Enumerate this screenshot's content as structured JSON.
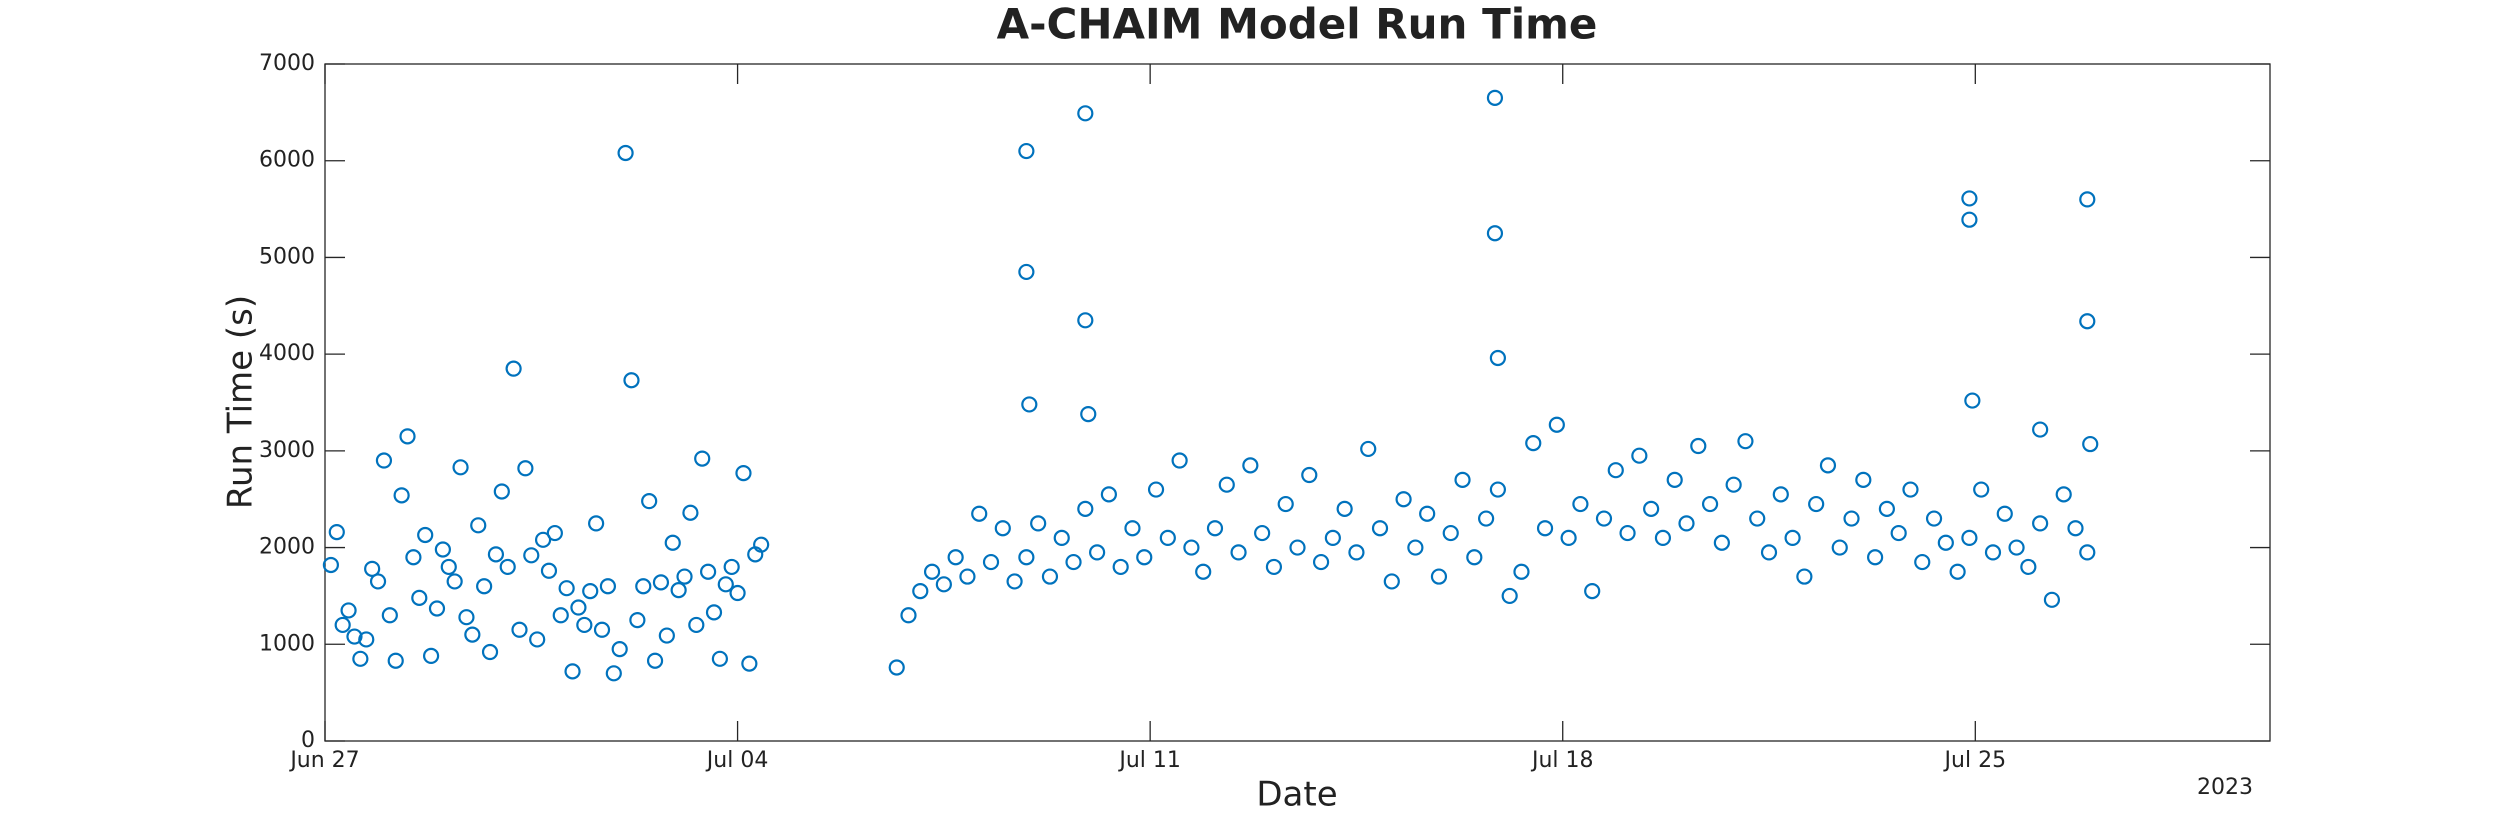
{
  "chart_data": {
    "type": "scatter",
    "title": "A-CHAIM Model Run Time",
    "x_label": "Date",
    "y_label": "Run Time (s)",
    "x_year_label": "2023",
    "color": "#0072bd",
    "marker": "open-circle",
    "xlim": [
      0,
      33
    ],
    "xticks": [
      {
        "value": 0,
        "label": "Jun 27"
      },
      {
        "value": 7,
        "label": "Jul 04"
      },
      {
        "value": 14,
        "label": "Jul 11"
      },
      {
        "value": 21,
        "label": "Jul 18"
      },
      {
        "value": 28,
        "label": "Jul 25"
      }
    ],
    "ylim": [
      0,
      7000
    ],
    "yticks": [
      0,
      1000,
      2000,
      3000,
      4000,
      5000,
      6000,
      7000
    ],
    "x": [
      0.1,
      0.2,
      0.3,
      0.4,
      0.5,
      0.6,
      0.7,
      0.8,
      0.9,
      1.0,
      1.1,
      1.2,
      1.3,
      1.4,
      1.5,
      1.6,
      1.7,
      1.8,
      1.9,
      2.0,
      2.1,
      2.2,
      2.3,
      2.4,
      2.5,
      2.6,
      2.7,
      2.8,
      2.9,
      3.0,
      3.1,
      3.2,
      3.3,
      3.4,
      3.5,
      3.6,
      3.7,
      3.8,
      3.9,
      4.0,
      4.1,
      4.2,
      4.3,
      4.4,
      4.5,
      4.6,
      4.7,
      4.8,
      4.9,
      5.0,
      5.1,
      5.2,
      5.3,
      5.4,
      5.5,
      5.6,
      5.7,
      5.8,
      5.9,
      6.0,
      6.1,
      6.2,
      6.3,
      6.4,
      6.5,
      6.6,
      6.7,
      6.8,
      6.9,
      7.0,
      7.1,
      7.2,
      7.3,
      7.4,
      9.7,
      9.9,
      10.1,
      10.3,
      10.5,
      10.7,
      10.9,
      11.1,
      11.3,
      11.5,
      11.7,
      11.9,
      12.1,
      12.3,
      12.5,
      12.7,
      12.9,
      13.1,
      13.3,
      13.5,
      13.7,
      13.9,
      14.1,
      14.3,
      14.5,
      14.7,
      14.9,
      15.1,
      15.3,
      15.5,
      15.7,
      15.9,
      16.1,
      16.3,
      16.5,
      16.7,
      16.9,
      17.1,
      17.3,
      17.5,
      17.7,
      17.9,
      18.1,
      18.3,
      18.5,
      18.7,
      18.9,
      19.1,
      19.3,
      19.5,
      19.7,
      19.9,
      20.1,
      20.3,
      20.5,
      20.7,
      20.9,
      21.1,
      21.3,
      21.5,
      21.7,
      21.9,
      22.1,
      22.3,
      22.5,
      22.7,
      22.9,
      23.1,
      23.3,
      23.5,
      23.7,
      23.9,
      24.1,
      24.3,
      24.5,
      24.7,
      24.9,
      25.1,
      25.3,
      25.5,
      25.7,
      25.9,
      26.1,
      26.3,
      26.5,
      26.7,
      26.9,
      27.1,
      27.3,
      27.5,
      27.7,
      27.9,
      28.1,
      28.3,
      28.5,
      28.7,
      28.9,
      29.1,
      29.3,
      29.5,
      29.7,
      29.9,
      11.9,
      11.9,
      11.95,
      12.9,
      12.9,
      12.95,
      19.85,
      19.85,
      19.9,
      27.9,
      27.9,
      27.95,
      29.1,
      29.9,
      29.9,
      29.95
    ],
    "values": [
      1820,
      2160,
      1200,
      1350,
      1080,
      850,
      1050,
      1780,
      1650,
      2900,
      1300,
      830,
      2540,
      3150,
      1900,
      1480,
      2130,
      880,
      1370,
      1980,
      1800,
      1650,
      2830,
      1280,
      1100,
      2230,
      1600,
      920,
      1930,
      2580,
      1800,
      3850,
      1150,
      2820,
      1920,
      1050,
      2080,
      1760,
      2150,
      1300,
      1580,
      720,
      1380,
      1200,
      1550,
      2250,
      1150,
      1600,
      700,
      950,
      6080,
      3730,
      1250,
      1600,
      2480,
      830,
      1640,
      1090,
      2050,
      1560,
      1700,
      2360,
      1200,
      2920,
      1750,
      1330,
      850,
      1620,
      1800,
      1530,
      2770,
      800,
      1930,
      2030,
      760,
      1300,
      1550,
      1750,
      1620,
      1900,
      1700,
      2350,
      1850,
      2200,
      1650,
      1900,
      2250,
      1700,
      2100,
      1850,
      2400,
      1950,
      2550,
      1800,
      2200,
      1900,
      2600,
      2100,
      2900,
      2000,
      1750,
      2200,
      2650,
      1950,
      2850,
      2150,
      1800,
      2450,
      2000,
      2750,
      1850,
      2100,
      2400,
      1950,
      3020,
      2200,
      1650,
      2500,
      2000,
      2350,
      1700,
      2150,
      2700,
      1900,
      2300,
      2600,
      1500,
      1750,
      3080,
      2200,
      3270,
      2100,
      2450,
      1550,
      2300,
      2800,
      2150,
      2950,
      2400,
      2100,
      2700,
      2250,
      3050,
      2450,
      2050,
      2650,
      3100,
      2300,
      1950,
      2550,
      2100,
      1700,
      2450,
      2850,
      2000,
      2300,
      2700,
      1900,
      2400,
      2150,
      2600,
      1850,
      2300,
      2050,
      1750,
      2100,
      2600,
      1950,
      2350,
      2000,
      1800,
      2250,
      1460,
      2550,
      2200,
      1950,
      6100,
      4850,
      3480,
      6490,
      4350,
      3380,
      6650,
      5250,
      3960,
      5610,
      5390,
      3520,
      3220,
      5600,
      4340,
      3070
    ]
  }
}
